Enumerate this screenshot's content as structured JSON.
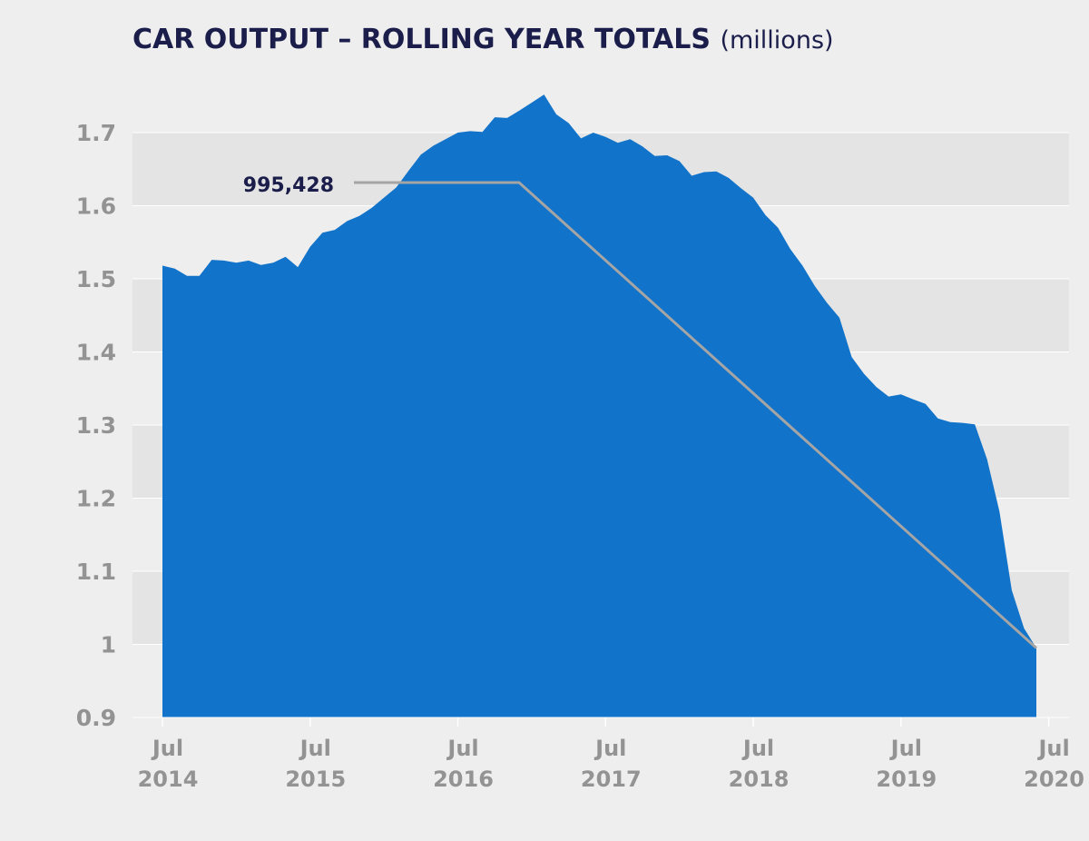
{
  "chart_data": {
    "type": "area",
    "title": "CAR OUTPUT – ROLLING YEAR TOTALS",
    "subtitle": "(millions)",
    "ylim": [
      0.9,
      1.7
    ],
    "yticks": [
      "1.7",
      "1.6",
      "1.5",
      "1.4",
      "1.3",
      "1.2",
      "1.1",
      "1",
      "0.9"
    ],
    "xticks": [
      {
        "month": "Jul",
        "year": "2014",
        "idx": 0
      },
      {
        "month": "Jul",
        "year": "2015",
        "idx": 12
      },
      {
        "month": "Jul",
        "year": "2016",
        "idx": 24
      },
      {
        "month": "Jul",
        "year": "2017",
        "idx": 36
      },
      {
        "month": "Jul",
        "year": "2018",
        "idx": 48
      },
      {
        "month": "Jul",
        "year": "2019",
        "idx": 60
      },
      {
        "month": "Jul",
        "year": "2020",
        "idx": 72
      }
    ],
    "grid": true,
    "color": "#1173c9",
    "series": [
      {
        "values": [
          1.518,
          1.514,
          1.504,
          1.504,
          1.526,
          1.525,
          1.522,
          1.525,
          1.519,
          1.522,
          1.53,
          1.516,
          1.544,
          1.563,
          1.567,
          1.579,
          1.586,
          1.597,
          1.611,
          1.625,
          1.648,
          1.67,
          1.682,
          1.691,
          1.7,
          1.702,
          1.701,
          1.721,
          1.72,
          1.73,
          1.741,
          1.752,
          1.725,
          1.713,
          1.692,
          1.7,
          1.694,
          1.686,
          1.691,
          1.681,
          1.668,
          1.669,
          1.661,
          1.641,
          1.646,
          1.647,
          1.638,
          1.624,
          1.611,
          1.587,
          1.57,
          1.541,
          1.518,
          1.49,
          1.467,
          1.447,
          1.393,
          1.37,
          1.352,
          1.339,
          1.342,
          1.335,
          1.329,
          1.309,
          1.304,
          1.303,
          1.301,
          1.253,
          1.182,
          1.074,
          1.022,
          0.995
        ]
      }
    ],
    "annotation": {
      "label": "995,428",
      "value": 0.995
    }
  }
}
